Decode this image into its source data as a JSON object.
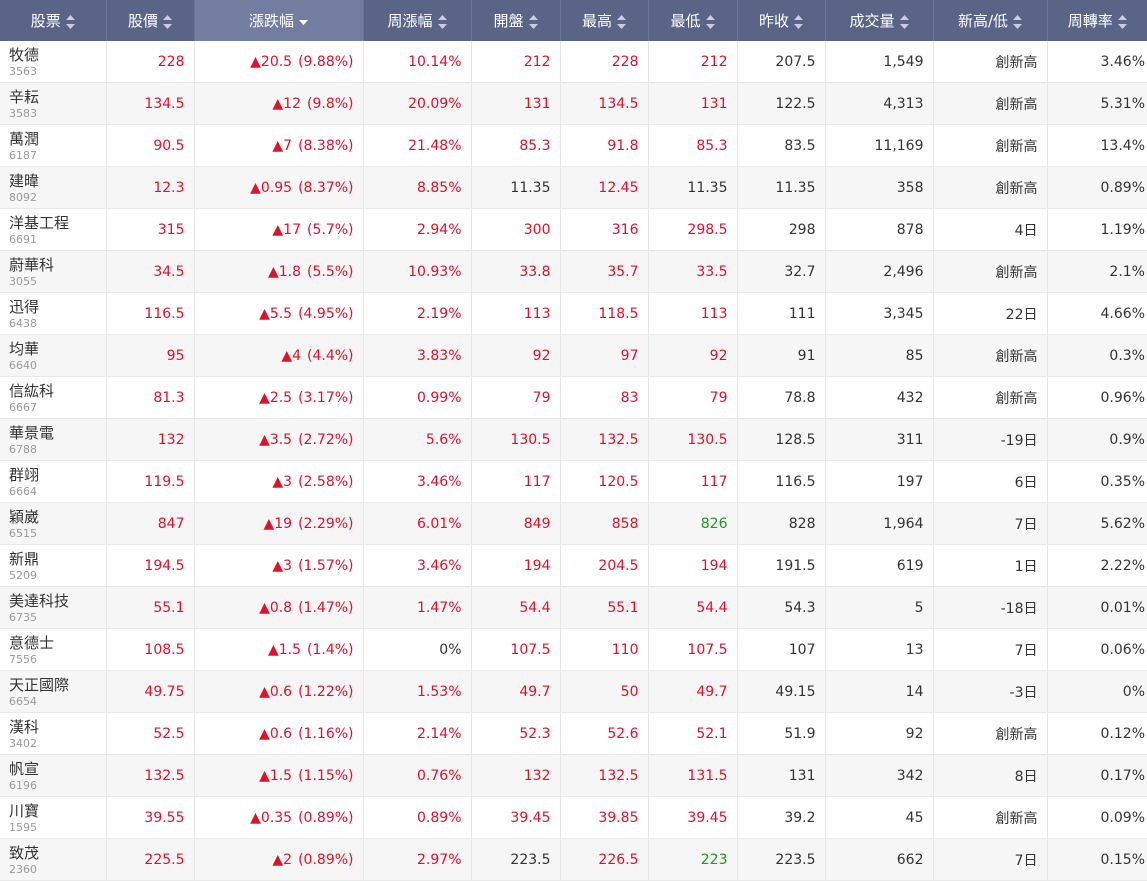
{
  "colors": {
    "up": "#e3102a",
    "down": "#1d9b1d",
    "flat": "#333333",
    "header_bg": "#5a6487",
    "header_active_bg": "#737da0"
  },
  "header": {
    "columns": [
      {
        "key": "stock",
        "label": "股票",
        "sort": "both"
      },
      {
        "key": "price",
        "label": "股價",
        "sort": "both"
      },
      {
        "key": "change",
        "label": "漲跌幅",
        "sort": "desc"
      },
      {
        "key": "week_change",
        "label": "周漲幅",
        "sort": "both"
      },
      {
        "key": "open",
        "label": "開盤",
        "sort": "both"
      },
      {
        "key": "high",
        "label": "最高",
        "sort": "both"
      },
      {
        "key": "low",
        "label": "最低",
        "sort": "both"
      },
      {
        "key": "prev_close",
        "label": "昨收",
        "sort": "both"
      },
      {
        "key": "volume",
        "label": "成交量",
        "sort": "both"
      },
      {
        "key": "high_low",
        "label": "新高/低",
        "sort": "both"
      },
      {
        "key": "turnover",
        "label": "周轉率",
        "sort": "both"
      }
    ]
  },
  "rows": [
    {
      "name": "牧德",
      "code": "3563",
      "price": "228",
      "change": "▲20.5",
      "change_pct": "(9.88%)",
      "week_change": "10.14%",
      "open": "212",
      "high": "228",
      "low": "212",
      "prev_close": "207.5",
      "volume": "1,549",
      "high_low": "創新高",
      "turnover": "3.46%",
      "low_color": "red"
    },
    {
      "name": "辛耘",
      "code": "3583",
      "price": "134.5",
      "change": "▲12",
      "change_pct": "(9.8%)",
      "week_change": "20.09%",
      "open": "131",
      "high": "134.5",
      "low": "131",
      "prev_close": "122.5",
      "volume": "4,313",
      "high_low": "創新高",
      "turnover": "5.31%",
      "low_color": "red"
    },
    {
      "name": "萬潤",
      "code": "6187",
      "price": "90.5",
      "change": "▲7",
      "change_pct": "(8.38%)",
      "week_change": "21.48%",
      "open": "85.3",
      "high": "91.8",
      "low": "85.3",
      "prev_close": "83.5",
      "volume": "11,169",
      "high_low": "創新高",
      "turnover": "13.4%",
      "low_color": "red"
    },
    {
      "name": "建暐",
      "code": "8092",
      "price": "12.3",
      "change": "▲0.95",
      "change_pct": "(8.37%)",
      "week_change": "8.85%",
      "open": "11.35",
      "high": "12.45",
      "low": "11.35",
      "prev_close": "11.35",
      "volume": "358",
      "high_low": "創新高",
      "turnover": "0.89%",
      "open_color": "dark",
      "low_color": "dark"
    },
    {
      "name": "洋基工程",
      "code": "6691",
      "price": "315",
      "change": "▲17",
      "change_pct": "(5.7%)",
      "week_change": "2.94%",
      "open": "300",
      "high": "316",
      "low": "298.5",
      "prev_close": "298",
      "volume": "878",
      "high_low": "4日",
      "turnover": "1.19%",
      "low_color": "red"
    },
    {
      "name": "蔚華科",
      "code": "3055",
      "price": "34.5",
      "change": "▲1.8",
      "change_pct": "(5.5%)",
      "week_change": "10.93%",
      "open": "33.8",
      "high": "35.7",
      "low": "33.5",
      "prev_close": "32.7",
      "volume": "2,496",
      "high_low": "創新高",
      "turnover": "2.1%",
      "low_color": "red"
    },
    {
      "name": "迅得",
      "code": "6438",
      "price": "116.5",
      "change": "▲5.5",
      "change_pct": "(4.95%)",
      "week_change": "2.19%",
      "open": "113",
      "high": "118.5",
      "low": "113",
      "prev_close": "111",
      "volume": "3,345",
      "high_low": "22日",
      "turnover": "4.66%",
      "low_color": "red"
    },
    {
      "name": "均華",
      "code": "6640",
      "price": "95",
      "change": "▲4",
      "change_pct": "(4.4%)",
      "week_change": "3.83%",
      "open": "92",
      "high": "97",
      "low": "92",
      "prev_close": "91",
      "volume": "85",
      "high_low": "創新高",
      "turnover": "0.3%",
      "low_color": "red"
    },
    {
      "name": "信紘科",
      "code": "6667",
      "price": "81.3",
      "change": "▲2.5",
      "change_pct": "(3.17%)",
      "week_change": "0.99%",
      "open": "79",
      "high": "83",
      "low": "79",
      "prev_close": "78.8",
      "volume": "432",
      "high_low": "創新高",
      "turnover": "0.96%",
      "low_color": "red"
    },
    {
      "name": "華景電",
      "code": "6788",
      "price": "132",
      "change": "▲3.5",
      "change_pct": "(2.72%)",
      "week_change": "5.6%",
      "open": "130.5",
      "high": "132.5",
      "low": "130.5",
      "prev_close": "128.5",
      "volume": "311",
      "high_low": "-19日",
      "turnover": "0.9%",
      "low_color": "red"
    },
    {
      "name": "群翊",
      "code": "6664",
      "price": "119.5",
      "change": "▲3",
      "change_pct": "(2.58%)",
      "week_change": "3.46%",
      "open": "117",
      "high": "120.5",
      "low": "117",
      "prev_close": "116.5",
      "volume": "197",
      "high_low": "6日",
      "turnover": "0.35%",
      "low_color": "red"
    },
    {
      "name": "穎崴",
      "code": "6515",
      "price": "847",
      "change": "▲19",
      "change_pct": "(2.29%)",
      "week_change": "6.01%",
      "open": "849",
      "high": "858",
      "low": "826",
      "prev_close": "828",
      "volume": "1,964",
      "high_low": "7日",
      "turnover": "5.62%",
      "low_color": "green"
    },
    {
      "name": "新鼎",
      "code": "5209",
      "price": "194.5",
      "change": "▲3",
      "change_pct": "(1.57%)",
      "week_change": "3.46%",
      "open": "194",
      "high": "204.5",
      "low": "194",
      "prev_close": "191.5",
      "volume": "619",
      "high_low": "1日",
      "turnover": "2.22%",
      "low_color": "red"
    },
    {
      "name": "美達科技",
      "code": "6735",
      "price": "55.1",
      "change": "▲0.8",
      "change_pct": "(1.47%)",
      "week_change": "1.47%",
      "open": "54.4",
      "high": "55.1",
      "low": "54.4",
      "prev_close": "54.3",
      "volume": "5",
      "high_low": "-18日",
      "turnover": "0.01%",
      "low_color": "red"
    },
    {
      "name": "意德士",
      "code": "7556",
      "price": "108.5",
      "change": "▲1.5",
      "change_pct": "(1.4%)",
      "week_change": "0%",
      "open": "107.5",
      "high": "110",
      "low": "107.5",
      "prev_close": "107",
      "volume": "13",
      "high_low": "7日",
      "turnover": "0.06%",
      "week_color": "dark",
      "low_color": "red"
    },
    {
      "name": "天正國際",
      "code": "6654",
      "price": "49.75",
      "change": "▲0.6",
      "change_pct": "(1.22%)",
      "week_change": "1.53%",
      "open": "49.7",
      "high": "50",
      "low": "49.7",
      "prev_close": "49.15",
      "volume": "14",
      "high_low": "-3日",
      "turnover": "0%",
      "low_color": "red"
    },
    {
      "name": "漢科",
      "code": "3402",
      "price": "52.5",
      "change": "▲0.6",
      "change_pct": "(1.16%)",
      "week_change": "2.14%",
      "open": "52.3",
      "high": "52.6",
      "low": "52.1",
      "prev_close": "51.9",
      "volume": "92",
      "high_low": "創新高",
      "turnover": "0.12%",
      "low_color": "red"
    },
    {
      "name": "帆宣",
      "code": "6196",
      "price": "132.5",
      "change": "▲1.5",
      "change_pct": "(1.15%)",
      "week_change": "0.76%",
      "open": "132",
      "high": "132.5",
      "low": "131.5",
      "prev_close": "131",
      "volume": "342",
      "high_low": "8日",
      "turnover": "0.17%",
      "low_color": "red"
    },
    {
      "name": "川寶",
      "code": "1595",
      "price": "39.55",
      "change": "▲0.35",
      "change_pct": "(0.89%)",
      "week_change": "0.89%",
      "open": "39.45",
      "high": "39.85",
      "low": "39.45",
      "prev_close": "39.2",
      "volume": "45",
      "high_low": "創新高",
      "turnover": "0.09%",
      "low_color": "red"
    },
    {
      "name": "致茂",
      "code": "2360",
      "price": "225.5",
      "change": "▲2",
      "change_pct": "(0.89%)",
      "week_change": "2.97%",
      "open": "223.5",
      "high": "226.5",
      "low": "223",
      "prev_close": "223.5",
      "volume": "662",
      "high_low": "7日",
      "turnover": "0.15%",
      "open_color": "dark",
      "low_color": "green"
    }
  ]
}
